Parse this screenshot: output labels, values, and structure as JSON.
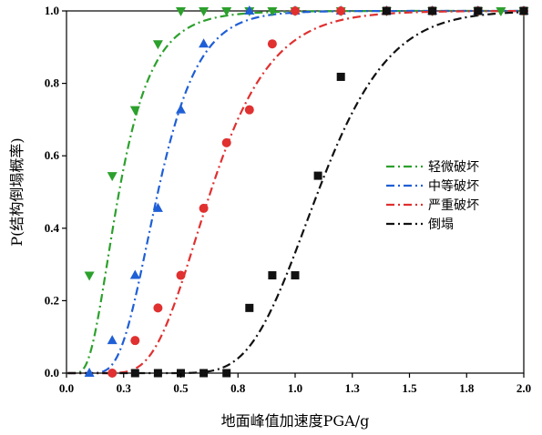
{
  "chart_data": {
    "type": "scatter",
    "xlabel": "地面峰值加速度PGA/g",
    "ylabel": "P(结构倒塌概率)",
    "xlim": [
      0,
      2.0
    ],
    "ylim": [
      0,
      1.0
    ],
    "xticks": [
      "0.0",
      "0.3",
      "0.5",
      "0.8",
      "1.0",
      "1.3",
      "1.5",
      "1.8",
      "2.0"
    ],
    "xtick_values": [
      0,
      0.25,
      0.5,
      0.75,
      1.0,
      1.25,
      1.5,
      1.75,
      2.0
    ],
    "yticks": [
      "0.0",
      "0.2",
      "0.4",
      "0.6",
      "0.8",
      "1.0"
    ],
    "ytick_values": [
      0,
      0.2,
      0.4,
      0.6,
      0.8,
      1.0
    ],
    "grid": false,
    "legend_position": "center-right",
    "series": [
      {
        "name": "轻微破坏",
        "color": "#2ca02c",
        "marker": "triangle-down",
        "line": "dash-dot",
        "fit_median": 0.23,
        "fit_beta": 0.5,
        "points": [
          [
            0.1,
            0.27
          ],
          [
            0.2,
            0.545
          ],
          [
            0.3,
            0.727
          ],
          [
            0.4,
            0.909
          ],
          [
            0.5,
            1.0
          ],
          [
            0.6,
            1.0
          ],
          [
            0.7,
            1.0
          ],
          [
            0.8,
            1.0
          ],
          [
            0.9,
            1.0
          ],
          [
            1.0,
            1.0
          ],
          [
            1.2,
            1.0
          ],
          [
            1.4,
            1.0
          ],
          [
            1.6,
            1.0
          ],
          [
            1.8,
            1.0
          ],
          [
            1.9,
            1.0
          ],
          [
            2.0,
            1.0
          ]
        ]
      },
      {
        "name": "中等破坏",
        "color": "#1f5fd6",
        "marker": "triangle-up",
        "line": "dash-dot",
        "fit_median": 0.4,
        "fit_beta": 0.35,
        "points": [
          [
            0.1,
            0.0
          ],
          [
            0.2,
            0.09
          ],
          [
            0.3,
            0.27
          ],
          [
            0.4,
            0.455
          ],
          [
            0.5,
            0.727
          ],
          [
            0.6,
            0.909
          ],
          [
            0.8,
            1.0
          ],
          [
            1.0,
            1.0
          ],
          [
            1.2,
            1.0
          ],
          [
            1.4,
            1.0
          ],
          [
            1.6,
            1.0
          ],
          [
            1.8,
            1.0
          ],
          [
            2.0,
            1.0
          ]
        ]
      },
      {
        "name": "严重破坏",
        "color": "#e03030",
        "marker": "circle",
        "line": "dash-dot",
        "fit_median": 0.63,
        "fit_beta": 0.33,
        "points": [
          [
            0.2,
            0.0
          ],
          [
            0.3,
            0.09
          ],
          [
            0.4,
            0.18
          ],
          [
            0.5,
            0.27
          ],
          [
            0.6,
            0.455
          ],
          [
            0.7,
            0.636
          ],
          [
            0.8,
            0.727
          ],
          [
            0.9,
            0.909
          ],
          [
            1.0,
            1.0
          ],
          [
            1.2,
            1.0
          ],
          [
            1.4,
            1.0
          ],
          [
            1.6,
            1.0
          ],
          [
            1.8,
            1.0
          ],
          [
            2.0,
            1.0
          ]
        ]
      },
      {
        "name": "倒塌",
        "color": "#111111",
        "marker": "square",
        "line": "dash-dot",
        "fit_median": 1.1,
        "fit_beta": 0.22,
        "points": [
          [
            0.3,
            0.0
          ],
          [
            0.4,
            0.0
          ],
          [
            0.5,
            0.0
          ],
          [
            0.6,
            0.0
          ],
          [
            0.7,
            0.0
          ],
          [
            0.8,
            0.18
          ],
          [
            0.9,
            0.27
          ],
          [
            1.0,
            0.27
          ],
          [
            1.1,
            0.545
          ],
          [
            1.2,
            0.818
          ],
          [
            1.4,
            1.0
          ],
          [
            1.6,
            1.0
          ],
          [
            1.8,
            1.0
          ],
          [
            2.0,
            1.0
          ]
        ]
      }
    ]
  }
}
